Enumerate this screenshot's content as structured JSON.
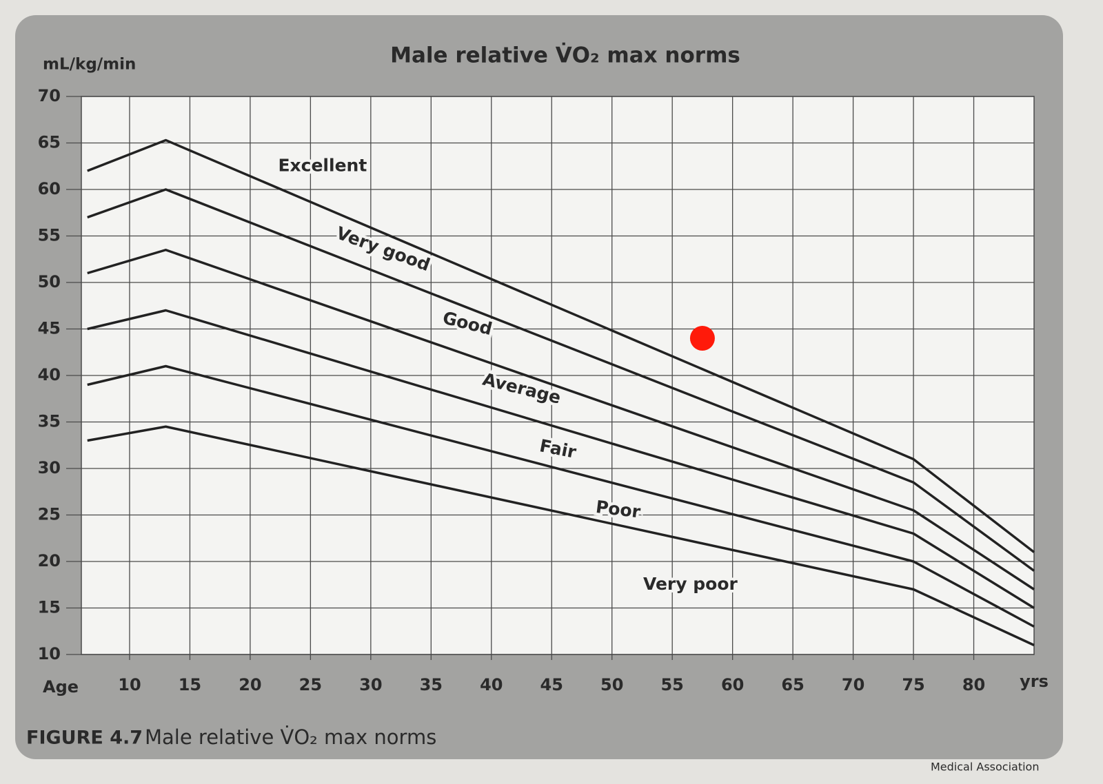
{
  "chart_data": {
    "type": "line",
    "title": "Male relative V̇O₂ max norms",
    "y_label": "mL/kg/min",
    "x_label_left": "Age",
    "x_label_right": "yrs",
    "caption_number": "FIGURE 4.7",
    "caption_text": "Male relative V̇O₂ max norms",
    "footer": "Medical Association",
    "x": [
      6.5,
      13,
      75,
      85
    ],
    "series": [
      {
        "color": "#222222",
        "values": [
          62,
          65.3,
          31,
          21
        ]
      },
      {
        "color": "#222222",
        "values": [
          57,
          60,
          28.5,
          19
        ]
      },
      {
        "color": "#222222",
        "values": [
          51,
          53.5,
          25.5,
          17
        ]
      },
      {
        "color": "#222222",
        "values": [
          45,
          47,
          23,
          15
        ]
      },
      {
        "color": "#222222",
        "values": [
          39,
          41,
          20,
          13
        ]
      },
      {
        "color": "#222222",
        "values": [
          33,
          34.5,
          17,
          11
        ]
      }
    ],
    "annotations": [
      "Excellent",
      "Very good",
      "Good",
      "Average",
      "Fair",
      "Poor",
      "Very poor"
    ],
    "marker": {
      "x": 57.5,
      "y": 44,
      "color": "#ff1a0a"
    },
    "xlim": [
      6,
      85
    ],
    "ylim": [
      10,
      70
    ],
    "xticks": [
      10,
      15,
      20,
      25,
      30,
      35,
      40,
      45,
      50,
      55,
      60,
      65,
      70,
      75,
      80
    ],
    "yticks": [
      10,
      15,
      20,
      25,
      30,
      35,
      40,
      45,
      50,
      55,
      60,
      65,
      70
    ],
    "grid": true
  }
}
